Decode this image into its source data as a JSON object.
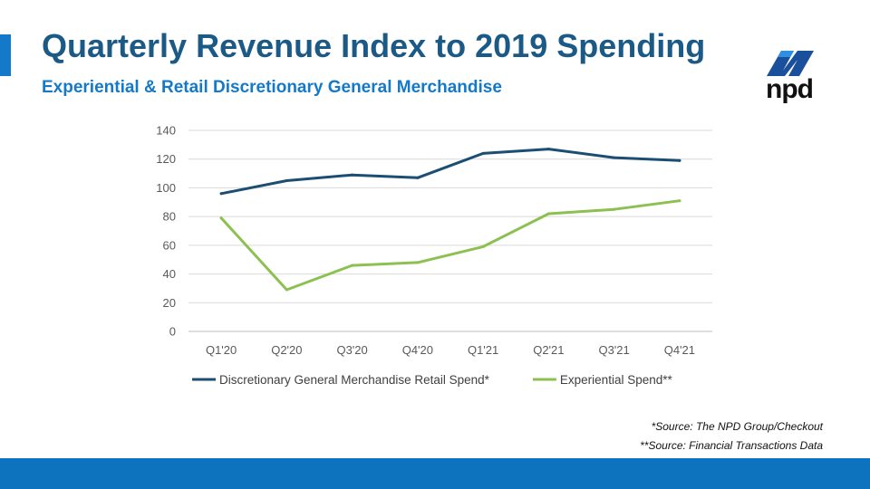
{
  "header": {
    "title": "Quarterly Revenue Index to 2019 Spending",
    "subtitle": "Experiential & Retail Discretionary General Merchandise"
  },
  "logo": {
    "text": "npd",
    "icon": "npd-swoosh-logo"
  },
  "chart_data": {
    "type": "line",
    "title": "",
    "xlabel": "",
    "ylabel": "",
    "categories": [
      "Q1'20",
      "Q2'20",
      "Q3'20",
      "Q4'20",
      "Q1'21",
      "Q2'21",
      "Q3'21",
      "Q4'21"
    ],
    "ylim": [
      0,
      140
    ],
    "yticks": [
      0,
      20,
      40,
      60,
      80,
      100,
      120,
      140
    ],
    "grid": true,
    "legend_position": "bottom",
    "series": [
      {
        "name": "Discretionary General Merchandise Retail Spend*",
        "color": "#1b4e73",
        "values": [
          96,
          105,
          109,
          107,
          124,
          127,
          121,
          119
        ]
      },
      {
        "name": "Experiential Spend**",
        "color": "#8cc152",
        "values": [
          79,
          29,
          46,
          48,
          59,
          82,
          85,
          91
        ]
      }
    ]
  },
  "sources": {
    "line1": "*Source: The NPD Group/Checkout",
    "line2": "**Source: Financial Transactions Data"
  }
}
